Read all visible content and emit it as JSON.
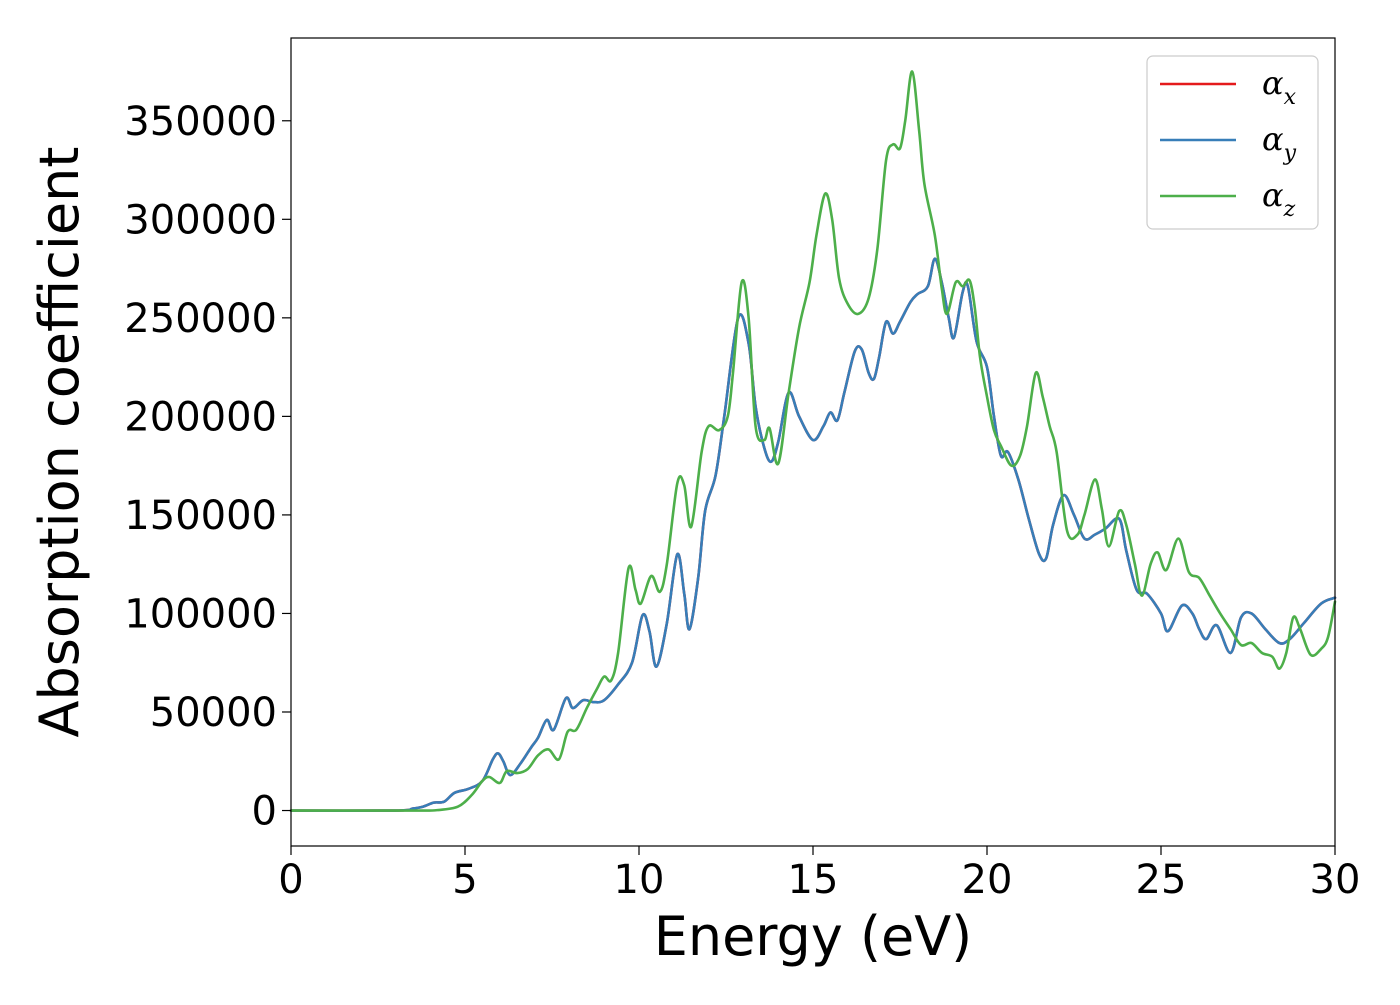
{
  "chart_data": {
    "type": "line",
    "xlabel": "Energy (eV)",
    "ylabel": "Absorption coefficient",
    "xlim": [
      0,
      30
    ],
    "ylim": [
      -18000,
      392000
    ],
    "xticks": [
      "0",
      "5",
      "10",
      "15",
      "20",
      "25",
      "30"
    ],
    "yticks": [
      "0",
      "50000",
      "100000",
      "150000",
      "200000",
      "250000",
      "300000",
      "350000"
    ],
    "legend_position": "top-right",
    "grid": false,
    "series": [
      {
        "name": "α",
        "subscript": "x",
        "color": "#e41a1c",
        "points": [
          [
            0,
            0
          ],
          [
            3.0,
            0
          ],
          [
            3.5,
            1000
          ],
          [
            3.8,
            2000
          ],
          [
            4.1,
            4000
          ],
          [
            4.4,
            4500
          ],
          [
            4.7,
            9000
          ],
          [
            5.1,
            11000
          ],
          [
            5.5,
            15000
          ],
          [
            5.8,
            26000
          ],
          [
            5.95,
            29000
          ],
          [
            6.1,
            25000
          ],
          [
            6.3,
            18000
          ],
          [
            6.6,
            24000
          ],
          [
            6.9,
            32000
          ],
          [
            7.1,
            37000
          ],
          [
            7.35,
            46000
          ],
          [
            7.55,
            41000
          ],
          [
            7.9,
            57000
          ],
          [
            8.1,
            52000
          ],
          [
            8.4,
            56000
          ],
          [
            8.7,
            55000
          ],
          [
            9.0,
            56000
          ],
          [
            9.4,
            64000
          ],
          [
            9.8,
            75000
          ],
          [
            10.1,
            99000
          ],
          [
            10.3,
            91000
          ],
          [
            10.5,
            73000
          ],
          [
            10.8,
            95000
          ],
          [
            11.1,
            130000
          ],
          [
            11.3,
            110000
          ],
          [
            11.45,
            92000
          ],
          [
            11.7,
            118000
          ],
          [
            11.9,
            152000
          ],
          [
            12.2,
            170000
          ],
          [
            12.45,
            200000
          ],
          [
            12.85,
            250000
          ],
          [
            13.15,
            237000
          ],
          [
            13.35,
            205000
          ],
          [
            13.6,
            184000
          ],
          [
            13.8,
            177000
          ],
          [
            14.0,
            187000
          ],
          [
            14.3,
            212000
          ],
          [
            14.6,
            200000
          ],
          [
            15.0,
            188000
          ],
          [
            15.3,
            195000
          ],
          [
            15.5,
            202000
          ],
          [
            15.7,
            198000
          ],
          [
            15.9,
            212000
          ],
          [
            16.2,
            233000
          ],
          [
            16.4,
            234000
          ],
          [
            16.6,
            222000
          ],
          [
            16.75,
            219000
          ],
          [
            16.9,
            230000
          ],
          [
            17.1,
            248000
          ],
          [
            17.3,
            242000
          ],
          [
            17.5,
            248000
          ],
          [
            17.8,
            258000
          ],
          [
            18.0,
            262000
          ],
          [
            18.3,
            266000
          ],
          [
            18.5,
            280000
          ],
          [
            18.7,
            268000
          ],
          [
            18.9,
            250000
          ],
          [
            19.05,
            240000
          ],
          [
            19.3,
            263000
          ],
          [
            19.45,
            266000
          ],
          [
            19.7,
            238000
          ],
          [
            20.0,
            225000
          ],
          [
            20.2,
            200000
          ],
          [
            20.4,
            180000
          ],
          [
            20.6,
            182000
          ],
          [
            20.9,
            168000
          ],
          [
            21.2,
            148000
          ],
          [
            21.5,
            130000
          ],
          [
            21.7,
            128000
          ],
          [
            21.9,
            145000
          ],
          [
            22.2,
            160000
          ],
          [
            22.5,
            150000
          ],
          [
            22.8,
            138000
          ],
          [
            23.1,
            140000
          ],
          [
            23.4,
            143000
          ],
          [
            23.8,
            148000
          ],
          [
            24.0,
            132000
          ],
          [
            24.3,
            112000
          ],
          [
            24.6,
            110000
          ],
          [
            25.0,
            100000
          ],
          [
            25.2,
            91000
          ],
          [
            25.6,
            104000
          ],
          [
            25.9,
            100000
          ],
          [
            26.1,
            92000
          ],
          [
            26.3,
            87000
          ],
          [
            26.6,
            94000
          ],
          [
            27.0,
            80000
          ],
          [
            27.3,
            98000
          ],
          [
            27.6,
            100000
          ],
          [
            28.0,
            92000
          ],
          [
            28.4,
            85000
          ],
          [
            28.7,
            87000
          ],
          [
            29.1,
            95000
          ],
          [
            29.6,
            105000
          ],
          [
            30.0,
            108000
          ]
        ]
      },
      {
        "name": "α",
        "subscript": "y",
        "color": "#377eb8",
        "points": [
          [
            0,
            0
          ],
          [
            3.0,
            0
          ],
          [
            3.5,
            1000
          ],
          [
            3.8,
            2000
          ],
          [
            4.1,
            4000
          ],
          [
            4.4,
            4500
          ],
          [
            4.7,
            9000
          ],
          [
            5.1,
            11000
          ],
          [
            5.5,
            15000
          ],
          [
            5.8,
            26000
          ],
          [
            5.95,
            29000
          ],
          [
            6.1,
            25000
          ],
          [
            6.3,
            18000
          ],
          [
            6.6,
            24000
          ],
          [
            6.9,
            32000
          ],
          [
            7.1,
            37000
          ],
          [
            7.35,
            46000
          ],
          [
            7.55,
            41000
          ],
          [
            7.9,
            57000
          ],
          [
            8.1,
            52000
          ],
          [
            8.4,
            56000
          ],
          [
            8.7,
            55000
          ],
          [
            9.0,
            56000
          ],
          [
            9.4,
            64000
          ],
          [
            9.8,
            75000
          ],
          [
            10.1,
            99000
          ],
          [
            10.3,
            91000
          ],
          [
            10.5,
            73000
          ],
          [
            10.8,
            95000
          ],
          [
            11.1,
            130000
          ],
          [
            11.3,
            110000
          ],
          [
            11.45,
            92000
          ],
          [
            11.7,
            118000
          ],
          [
            11.9,
            152000
          ],
          [
            12.2,
            170000
          ],
          [
            12.45,
            200000
          ],
          [
            12.85,
            250000
          ],
          [
            13.15,
            237000
          ],
          [
            13.35,
            205000
          ],
          [
            13.6,
            184000
          ],
          [
            13.8,
            177000
          ],
          [
            14.0,
            187000
          ],
          [
            14.3,
            212000
          ],
          [
            14.6,
            200000
          ],
          [
            15.0,
            188000
          ],
          [
            15.3,
            195000
          ],
          [
            15.5,
            202000
          ],
          [
            15.7,
            198000
          ],
          [
            15.9,
            212000
          ],
          [
            16.2,
            233000
          ],
          [
            16.4,
            234000
          ],
          [
            16.6,
            222000
          ],
          [
            16.75,
            219000
          ],
          [
            16.9,
            230000
          ],
          [
            17.1,
            248000
          ],
          [
            17.3,
            242000
          ],
          [
            17.5,
            248000
          ],
          [
            17.8,
            258000
          ],
          [
            18.0,
            262000
          ],
          [
            18.3,
            266000
          ],
          [
            18.5,
            280000
          ],
          [
            18.7,
            268000
          ],
          [
            18.9,
            250000
          ],
          [
            19.05,
            240000
          ],
          [
            19.3,
            263000
          ],
          [
            19.45,
            266000
          ],
          [
            19.7,
            238000
          ],
          [
            20.0,
            225000
          ],
          [
            20.2,
            200000
          ],
          [
            20.4,
            180000
          ],
          [
            20.6,
            182000
          ],
          [
            20.9,
            168000
          ],
          [
            21.2,
            148000
          ],
          [
            21.5,
            130000
          ],
          [
            21.7,
            128000
          ],
          [
            21.9,
            145000
          ],
          [
            22.2,
            160000
          ],
          [
            22.5,
            150000
          ],
          [
            22.8,
            138000
          ],
          [
            23.1,
            140000
          ],
          [
            23.4,
            143000
          ],
          [
            23.8,
            148000
          ],
          [
            24.0,
            132000
          ],
          [
            24.3,
            112000
          ],
          [
            24.6,
            110000
          ],
          [
            25.0,
            100000
          ],
          [
            25.2,
            91000
          ],
          [
            25.6,
            104000
          ],
          [
            25.9,
            100000
          ],
          [
            26.1,
            92000
          ],
          [
            26.3,
            87000
          ],
          [
            26.6,
            94000
          ],
          [
            27.0,
            80000
          ],
          [
            27.3,
            98000
          ],
          [
            27.6,
            100000
          ],
          [
            28.0,
            92000
          ],
          [
            28.4,
            85000
          ],
          [
            28.7,
            87000
          ],
          [
            29.1,
            95000
          ],
          [
            29.6,
            105000
          ],
          [
            30.0,
            108000
          ]
        ]
      },
      {
        "name": "α",
        "subscript": "z",
        "color": "#4daf4a",
        "points": [
          [
            0,
            0
          ],
          [
            3.5,
            0
          ],
          [
            4.2,
            200
          ],
          [
            4.8,
            2000
          ],
          [
            5.2,
            8000
          ],
          [
            5.5,
            15000
          ],
          [
            5.7,
            17000
          ],
          [
            6.0,
            14000
          ],
          [
            6.2,
            20000
          ],
          [
            6.5,
            19000
          ],
          [
            6.8,
            21000
          ],
          [
            7.1,
            28000
          ],
          [
            7.4,
            31000
          ],
          [
            7.7,
            26000
          ],
          [
            7.95,
            40000
          ],
          [
            8.2,
            41000
          ],
          [
            8.5,
            52000
          ],
          [
            8.8,
            62000
          ],
          [
            9.0,
            68000
          ],
          [
            9.2,
            66000
          ],
          [
            9.4,
            80000
          ],
          [
            9.7,
            123000
          ],
          [
            9.9,
            112000
          ],
          [
            10.05,
            105000
          ],
          [
            10.35,
            119000
          ],
          [
            10.6,
            111000
          ],
          [
            10.8,
            125000
          ],
          [
            11.1,
            166000
          ],
          [
            11.3,
            165000
          ],
          [
            11.5,
            144000
          ],
          [
            11.8,
            182000
          ],
          [
            12.0,
            195000
          ],
          [
            12.3,
            193000
          ],
          [
            12.55,
            200000
          ],
          [
            12.7,
            222000
          ],
          [
            12.95,
            268000
          ],
          [
            13.15,
            250000
          ],
          [
            13.35,
            195000
          ],
          [
            13.6,
            188000
          ],
          [
            13.75,
            194000
          ],
          [
            14.0,
            176000
          ],
          [
            14.3,
            212000
          ],
          [
            14.6,
            245000
          ],
          [
            14.9,
            268000
          ],
          [
            15.1,
            292000
          ],
          [
            15.35,
            313000
          ],
          [
            15.55,
            300000
          ],
          [
            15.75,
            270000
          ],
          [
            16.0,
            257000
          ],
          [
            16.3,
            252000
          ],
          [
            16.6,
            260000
          ],
          [
            16.85,
            285000
          ],
          [
            17.1,
            330000
          ],
          [
            17.3,
            338000
          ],
          [
            17.5,
            336000
          ],
          [
            17.65,
            350000
          ],
          [
            17.85,
            375000
          ],
          [
            18.05,
            345000
          ],
          [
            18.2,
            318000
          ],
          [
            18.5,
            292000
          ],
          [
            18.7,
            265000
          ],
          [
            18.85,
            252000
          ],
          [
            19.1,
            268000
          ],
          [
            19.3,
            266000
          ],
          [
            19.5,
            269000
          ],
          [
            19.65,
            255000
          ],
          [
            19.8,
            230000
          ],
          [
            20.0,
            210000
          ],
          [
            20.2,
            193000
          ],
          [
            20.4,
            185000
          ],
          [
            20.7,
            175000
          ],
          [
            20.95,
            180000
          ],
          [
            21.15,
            195000
          ],
          [
            21.4,
            222000
          ],
          [
            21.6,
            210000
          ],
          [
            21.8,
            195000
          ],
          [
            22.0,
            182000
          ],
          [
            22.3,
            142000
          ],
          [
            22.6,
            140000
          ],
          [
            22.8,
            150000
          ],
          [
            23.1,
            168000
          ],
          [
            23.3,
            153000
          ],
          [
            23.5,
            134000
          ],
          [
            23.8,
            152000
          ],
          [
            24.0,
            145000
          ],
          [
            24.25,
            125000
          ],
          [
            24.45,
            109000
          ],
          [
            24.7,
            125000
          ],
          [
            24.9,
            131000
          ],
          [
            25.15,
            122000
          ],
          [
            25.5,
            138000
          ],
          [
            25.8,
            121000
          ],
          [
            26.1,
            118000
          ],
          [
            26.4,
            109000
          ],
          [
            26.7,
            100000
          ],
          [
            27.0,
            92000
          ],
          [
            27.3,
            84000
          ],
          [
            27.6,
            85000
          ],
          [
            27.9,
            80000
          ],
          [
            28.2,
            78000
          ],
          [
            28.4,
            72000
          ],
          [
            28.6,
            80000
          ],
          [
            28.8,
            98000
          ],
          [
            29.0,
            92000
          ],
          [
            29.3,
            79000
          ],
          [
            29.6,
            82000
          ],
          [
            29.8,
            88000
          ],
          [
            30.0,
            106000
          ]
        ]
      }
    ]
  }
}
